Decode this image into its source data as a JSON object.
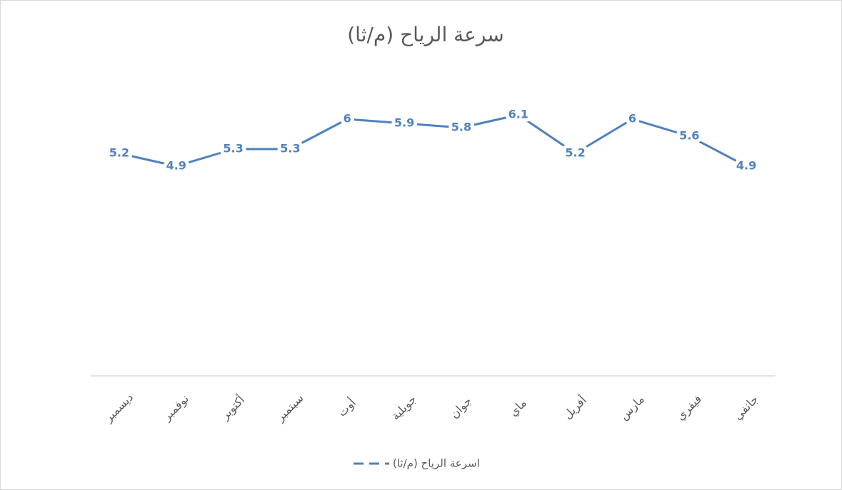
{
  "chart_data": {
    "type": "line",
    "title": "سرعة الرياح (م/ثا)",
    "categories": [
      "جانفي",
      "فيفري",
      "مارس",
      "أفريل",
      "ماي",
      "جوان",
      "جويلية",
      "أوت",
      "سبتمبر",
      "أكتوبر",
      "نوفمبر",
      "ديسمبر"
    ],
    "x_reversed": true,
    "series": [
      {
        "name": "اسرعة الرياح (م/ثا)",
        "color": "#4f81bd",
        "values": [
          4.9,
          5.6,
          6,
          5.2,
          6.1,
          5.8,
          5.9,
          6,
          5.3,
          5.3,
          4.9,
          5.2
        ]
      }
    ],
    "ylim": [
      0,
      7
    ],
    "grid": false,
    "legend": "bottom"
  }
}
